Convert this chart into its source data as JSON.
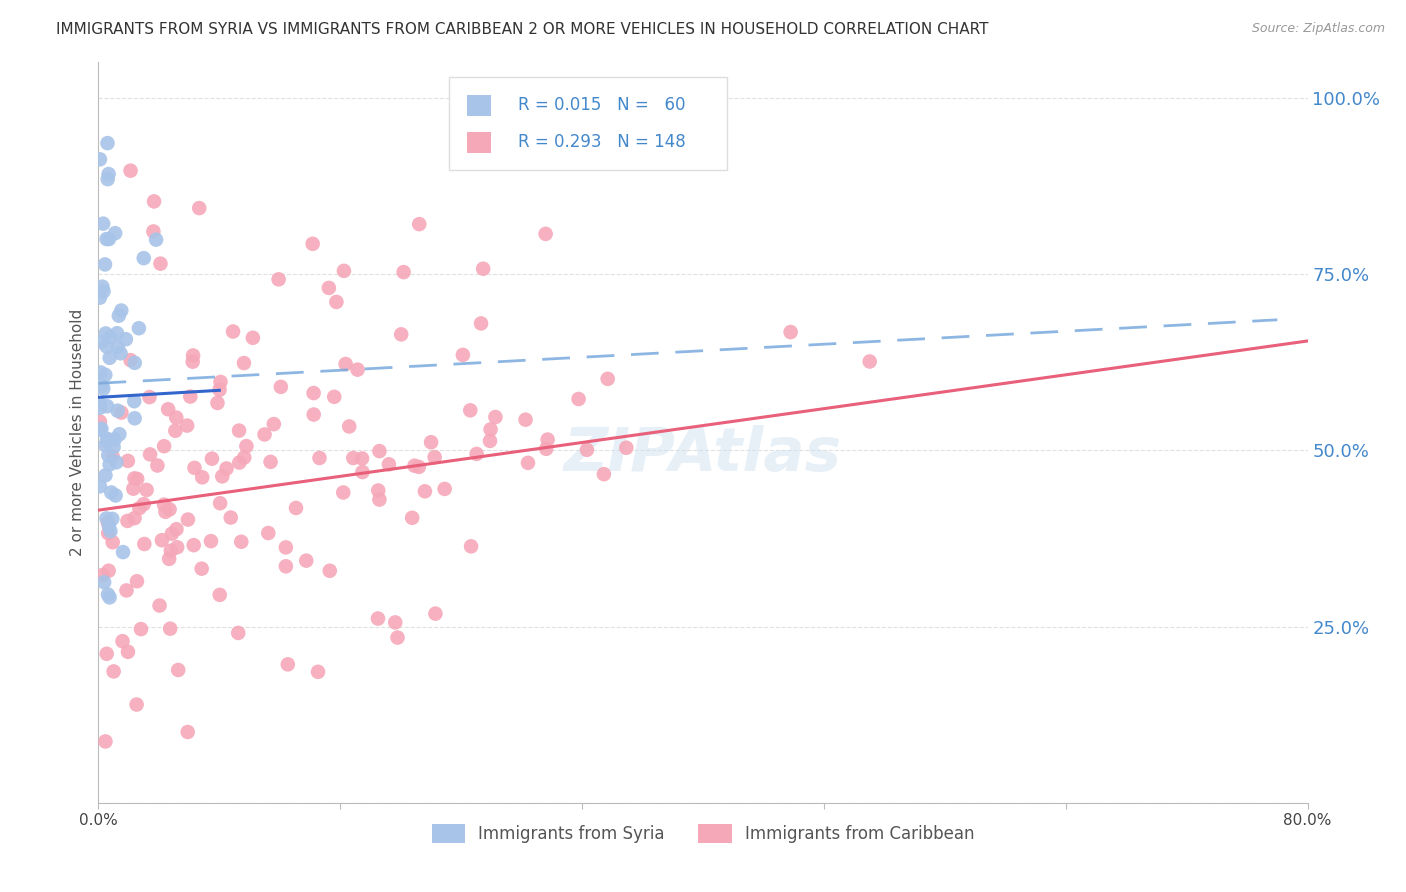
{
  "title": "IMMIGRANTS FROM SYRIA VS IMMIGRANTS FROM CARIBBEAN 2 OR MORE VEHICLES IN HOUSEHOLD CORRELATION CHART",
  "source": "Source: ZipAtlas.com",
  "ylabel": "2 or more Vehicles in Household",
  "syria_color": "#a8c4e8",
  "carib_color": "#f5a8b8",
  "syria_line_color": "#3366cc",
  "carib_line_color": "#e8607a",
  "dashed_line_color": "#7aaadd",
  "background_color": "#ffffff",
  "grid_color": "#cccccc",
  "title_color": "#333333",
  "right_axis_color": "#4488cc",
  "axis_label_color": "#4488cc",
  "watermark_color": "#d0e0f0",
  "legend_border_color": "#dddddd",
  "bottom_legend_color": "#555555",
  "xlim": [
    0.0,
    0.8
  ],
  "ylim": [
    0.0,
    1.05
  ],
  "ytick_positions": [
    0.0,
    0.25,
    0.5,
    0.75,
    1.0
  ],
  "ytick_labels_right": [
    "",
    "25.0%",
    "50.0%",
    "75.0%",
    "100.0%"
  ],
  "xtick_positions": [
    0.0,
    0.16,
    0.32,
    0.48,
    0.64,
    0.8
  ],
  "xtick_labels": [
    "0.0%",
    "",
    "",
    "",
    "",
    "80.0%"
  ],
  "legend_R_syria": "R = 0.015",
  "legend_N_syria": "N =  60",
  "legend_R_carib": "R = 0.293",
  "legend_N_carib": "N = 148",
  "legend_label_syria": "Immigrants from Syria",
  "legend_label_carib": "Immigrants from Caribbean",
  "syria_trend_start_x": 0.0,
  "syria_trend_start_y": 0.575,
  "syria_trend_end_x": 0.08,
  "syria_trend_end_y": 0.585,
  "carib_trend_start_x": 0.0,
  "carib_trend_start_y": 0.415,
  "carib_trend_end_x": 0.8,
  "carib_trend_end_y": 0.655,
  "dashed_trend_start_x": 0.0,
  "dashed_trend_start_y": 0.595,
  "dashed_trend_end_x": 0.78,
  "dashed_trend_end_y": 0.685
}
